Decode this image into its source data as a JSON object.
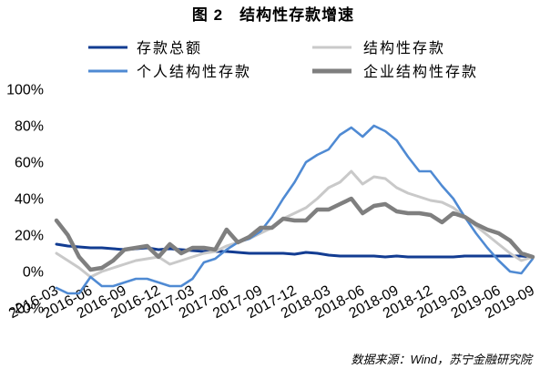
{
  "chart_data": {
    "type": "line",
    "title": "图 2　结构性存款增速",
    "x": [
      "2016-03",
      "2016-04",
      "2016-05",
      "2016-06",
      "2016-07",
      "2016-08",
      "2016-09",
      "2016-10",
      "2016-11",
      "2016-12",
      "2017-01",
      "2017-02",
      "2017-03",
      "2017-04",
      "2017-05",
      "2017-06",
      "2017-07",
      "2017-08",
      "2017-09",
      "2017-10",
      "2017-11",
      "2017-12",
      "2018-01",
      "2018-02",
      "2018-03",
      "2018-04",
      "2018-05",
      "2018-06",
      "2018-07",
      "2018-08",
      "2018-09",
      "2018-10",
      "2018-11",
      "2018-12",
      "2019-01",
      "2019-02",
      "2019-03",
      "2019-04",
      "2019-05",
      "2019-06",
      "2019-07",
      "2019-08",
      "2019-09"
    ],
    "x_tick_labels": [
      "2016-03",
      "2016-06",
      "2016-09",
      "2016-12",
      "2017-03",
      "2017-06",
      "2017-09",
      "2017-12",
      "2018-03",
      "2018-06",
      "2018-09",
      "2018-12",
      "2019-03",
      "2019-06",
      "2019-09"
    ],
    "y_tick_labels": [
      "100%",
      "80%",
      "60%",
      "40%",
      "20%",
      "0%",
      "-20%"
    ],
    "ylim": [
      -20,
      100
    ],
    "grid": false,
    "legend": "top",
    "series": [
      {
        "name": "存款总额",
        "color": "#123c92",
        "values": [
          15,
          14,
          13.5,
          13,
          13,
          12.5,
          12,
          12.5,
          13,
          12,
          12.5,
          12,
          11.5,
          11,
          11,
          11,
          10.5,
          10,
          10,
          10,
          10,
          9.5,
          10.5,
          10,
          9,
          8.5,
          8.5,
          8.5,
          8.5,
          8,
          8.5,
          8,
          8,
          8,
          8,
          8,
          8.5,
          8.5,
          8.5,
          8.5,
          8.5,
          8.5,
          8
        ]
      },
      {
        "name": "结构性存款",
        "color": "#c9c9c9",
        "values": [
          10,
          6,
          2,
          -3,
          0,
          2,
          4,
          6,
          7,
          8,
          4,
          6,
          8,
          10,
          11,
          14,
          16,
          18,
          21,
          24,
          29,
          32,
          35,
          40,
          46,
          49,
          55,
          48,
          52,
          51,
          46,
          43,
          41,
          39,
          38,
          35,
          30,
          25,
          20,
          15,
          10,
          6,
          8
        ]
      },
      {
        "name": "个人结构性存款",
        "color": "#4f8ad3",
        "values": [
          -9,
          -12,
          -12,
          -3,
          -8,
          -8,
          -6,
          -4,
          -4,
          -6,
          -8,
          -8,
          -4,
          5,
          7,
          12,
          16,
          18,
          22,
          30,
          40,
          49,
          60,
          64,
          67,
          75,
          79,
          74,
          80,
          77,
          72,
          63,
          55,
          55,
          47,
          40,
          30,
          21,
          13,
          6,
          0,
          -1,
          7
        ]
      },
      {
        "name": "企业结构性存款",
        "color": "#7f7f7f",
        "values": [
          28,
          20,
          8,
          1,
          2,
          6,
          12,
          13,
          14,
          8,
          15,
          10,
          13,
          13,
          12,
          23,
          16,
          19,
          24,
          24,
          29,
          28,
          28,
          34,
          34,
          37,
          40,
          32,
          36,
          37,
          33,
          32,
          32,
          31,
          27,
          32,
          30,
          26,
          23,
          21,
          17,
          10,
          8
        ]
      }
    ]
  },
  "source": "数据来源：Wind，苏宁金融研究院"
}
